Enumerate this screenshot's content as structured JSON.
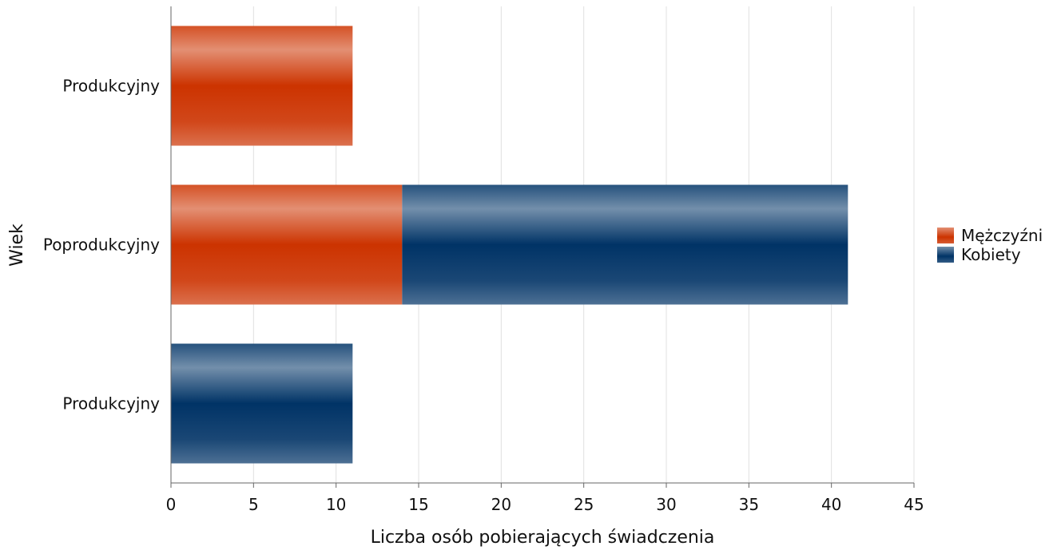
{
  "chart_data": {
    "type": "bar",
    "orientation": "horizontal",
    "stacked": true,
    "categories": [
      "Produkcyjny",
      "Poprodukcyjny",
      "Produkcyjny"
    ],
    "series": [
      {
        "name": "Mężczyźni",
        "values": [
          11,
          14,
          0
        ],
        "color": "#cc3300"
      },
      {
        "name": "Kobiety",
        "values": [
          0,
          27,
          11
        ],
        "color": "#003366"
      }
    ],
    "xlabel": "Liczba osób pobierających świadczenia",
    "ylabel": "Wiek",
    "xlim": [
      0,
      45
    ],
    "xticks": [
      0,
      5,
      10,
      15,
      20,
      25,
      30,
      35,
      40,
      45
    ],
    "grid": "vertical",
    "legend_position": "right"
  }
}
